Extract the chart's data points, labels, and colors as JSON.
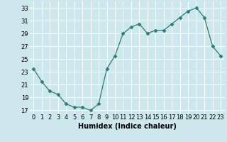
{
  "x": [
    0,
    1,
    2,
    3,
    4,
    5,
    6,
    7,
    8,
    9,
    10,
    11,
    12,
    13,
    14,
    15,
    16,
    17,
    18,
    19,
    20,
    21,
    22,
    23
  ],
  "y": [
    23.5,
    21.5,
    20.0,
    19.5,
    18.0,
    17.5,
    17.5,
    17.0,
    18.0,
    23.5,
    25.5,
    29.0,
    30.0,
    30.5,
    29.0,
    29.5,
    29.5,
    30.5,
    31.5,
    32.5,
    33.0,
    31.5,
    27.0,
    25.5
  ],
  "xlabel": "Humidex (Indice chaleur)",
  "xlim": [
    -0.5,
    23.5
  ],
  "ylim": [
    16.5,
    34.0
  ],
  "yticks": [
    17,
    19,
    21,
    23,
    25,
    27,
    29,
    31,
    33
  ],
  "xticks": [
    0,
    1,
    2,
    3,
    4,
    5,
    6,
    7,
    8,
    9,
    10,
    11,
    12,
    13,
    14,
    15,
    16,
    17,
    18,
    19,
    20,
    21,
    22,
    23
  ],
  "line_color": "#2e7d6e",
  "marker": "D",
  "marker_size": 2.5,
  "bg_color": "#cce8ec",
  "grid_color": "#ffffff",
  "tick_fontsize": 6,
  "xlabel_fontsize": 7
}
